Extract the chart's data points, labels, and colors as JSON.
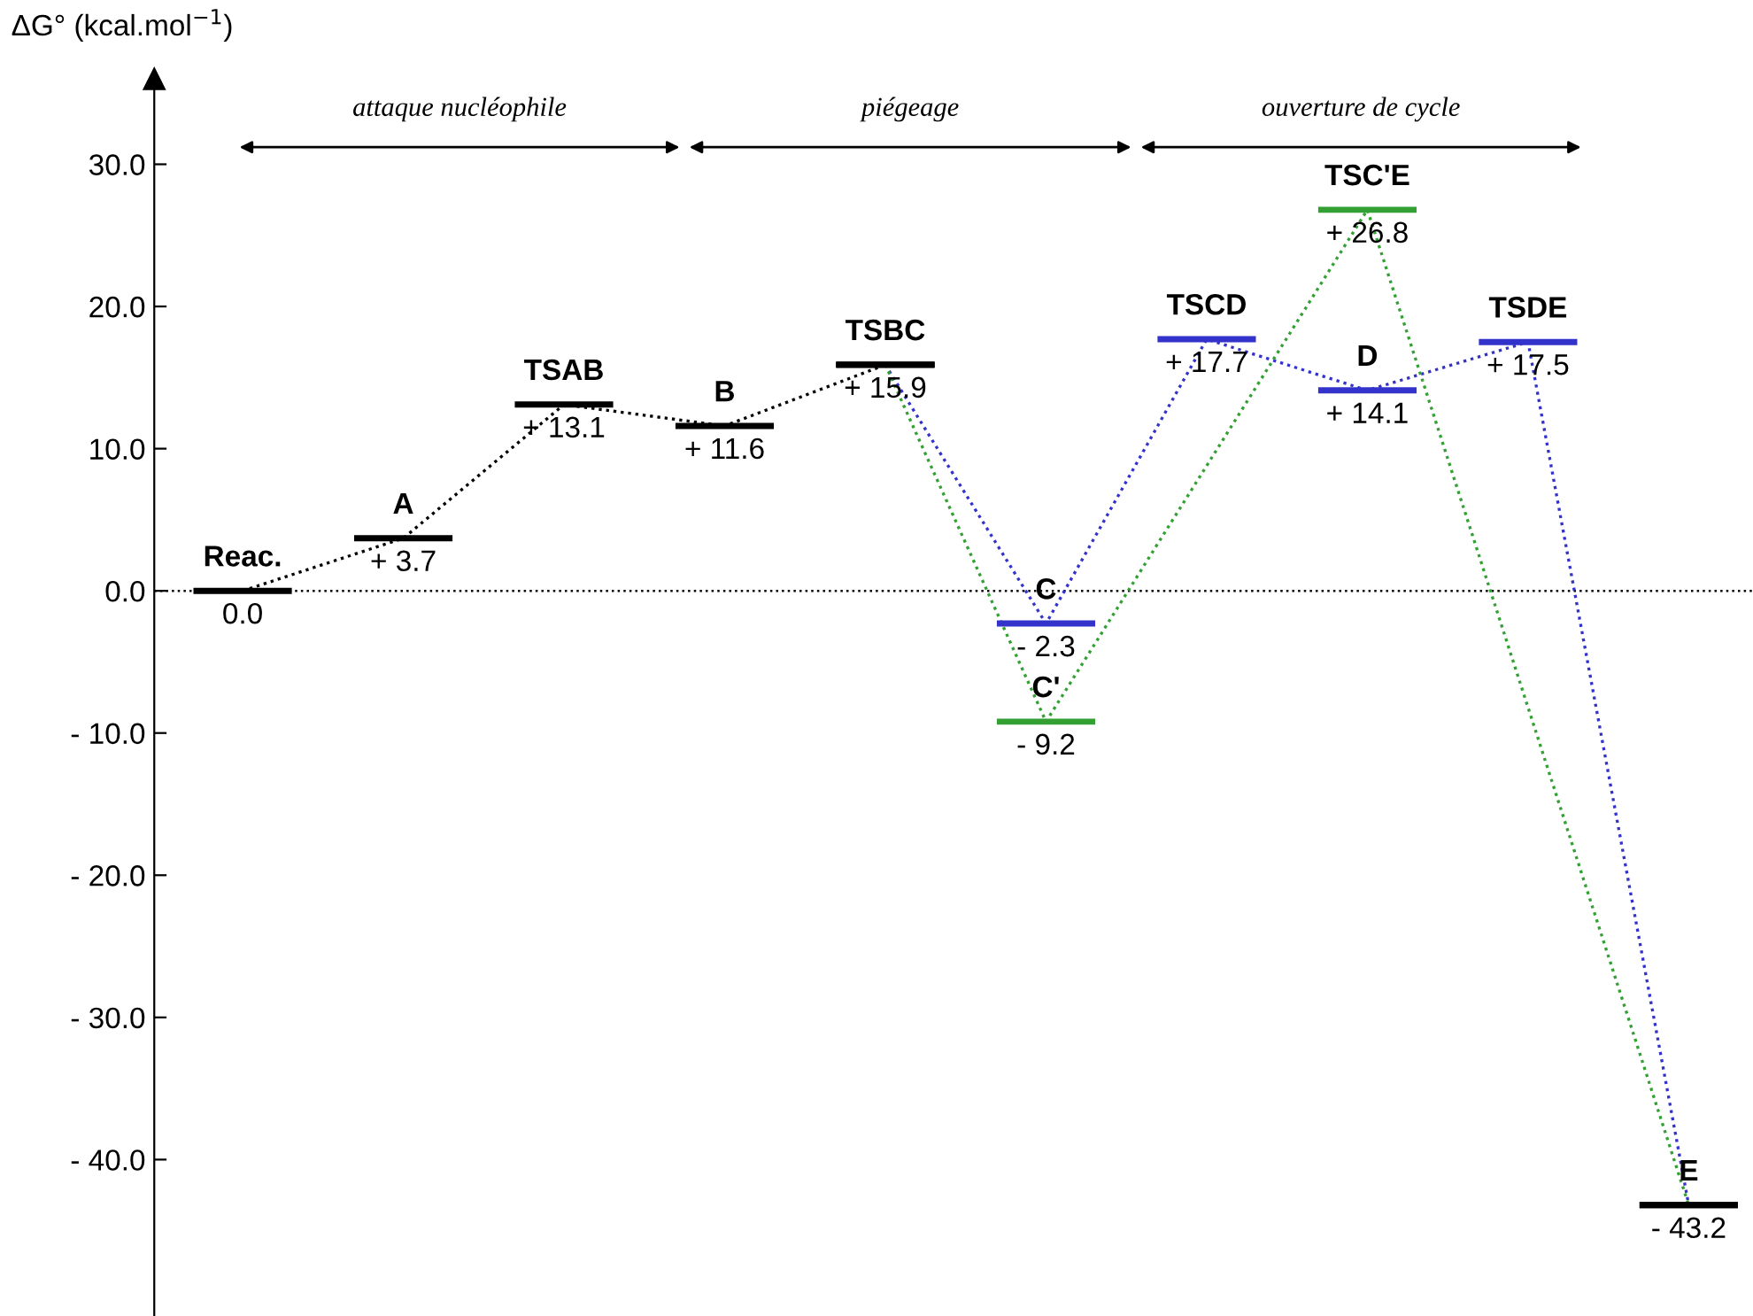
{
  "chart_data": {
    "type": "line",
    "ylabel": "ΔG° (kcal.mol$^{−1}$)",
    "categories": [
      "Reac.",
      "A",
      "TSAB",
      "B",
      "TSBC",
      "C",
      "TSCD",
      "D",
      "TSDE",
      "E"
    ],
    "series": [
      {
        "color": "#000000",
        "values": [
          0.0,
          3.7,
          13.1,
          11.6,
          15.9,
          null,
          null,
          null,
          null,
          null
        ],
        "value_labels": [
          "0.0",
          "+ 3.7",
          "+ 13.1",
          "+ 11.6",
          "+ 15.9",
          null,
          null,
          null,
          null,
          null
        ]
      },
      {
        "color": "#3333cc",
        "colors": [
          "#3333cc",
          "#3333cc",
          "#3333cc",
          "#3333cc",
          "#000000",
          "#3333cc",
          "#3333cc",
          "#3333cc",
          "#3333cc",
          "#000000"
        ],
        "values": [
          null,
          null,
          null,
          null,
          15.9,
          -2.3,
          17.7,
          14.1,
          17.5,
          -43.2
        ],
        "value_labels": [
          null,
          null,
          null,
          null,
          null,
          "- 2.3",
          "+ 17.7",
          "+ 14.1",
          "+ 17.5",
          "- 43.2"
        ]
      },
      {
        "color": "#33a033",
        "colors": [
          "#33a033",
          "#33a033",
          "#33a033",
          "#33a033",
          "#000000",
          "#33a033",
          "#33a033",
          "#33a033",
          "#33a033",
          "#000000"
        ],
        "values": [
          null,
          null,
          null,
          null,
          15.9,
          -9.2,
          null,
          26.8,
          null,
          -43.2
        ],
        "value_labels": [
          null,
          null,
          null,
          null,
          null,
          "- 9.2",
          null,
          "+ 26.8",
          null,
          null
        ]
      }
    ],
    "ylim": [
      -51,
      36
    ],
    "yticks": [
      {
        "value": 30,
        "label": "30.0"
      },
      {
        "value": 20,
        "label": "20.0"
      },
      {
        "value": 10,
        "label": "10.0"
      },
      {
        "value": 0,
        "label": "0.0"
      },
      {
        "value": -10,
        "label": "- 10.0"
      },
      {
        "value": -20,
        "label": "- 20.0"
      },
      {
        "value": -30,
        "label": "- 30.0"
      },
      {
        "value": -40,
        "label": "- 40.0"
      }
    ],
    "tick_labels": "y",
    "grid": false,
    "line_style": "dotted",
    "ref_lines": [
      {
        "axis": "y",
        "value": 0,
        "line_style": "dotted",
        "color": "#000000"
      }
    ],
    "annotations": [
      "attaque nucléophile",
      "piégeage",
      "ouverture de cycle",
      {
        "text": "C'",
        "x": "C",
        "y": -9.2
      },
      {
        "text": "TSC'E",
        "x": "D",
        "y": 26.8
      }
    ]
  }
}
